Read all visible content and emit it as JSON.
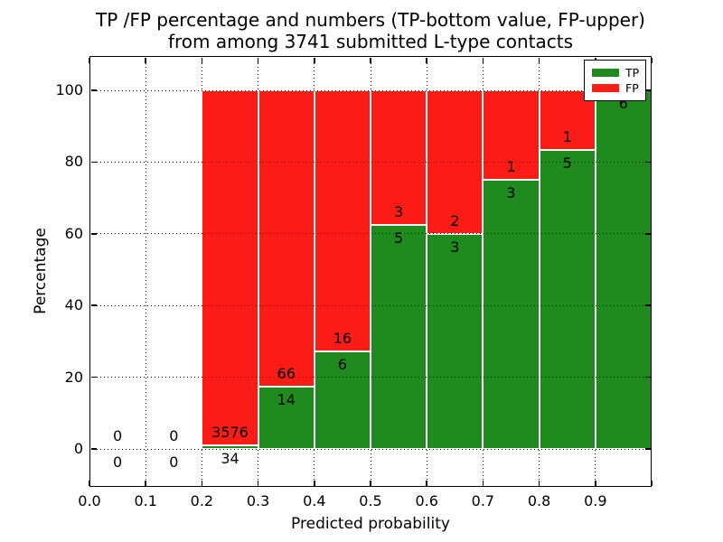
{
  "title": {
    "line1": "TP /FP percentage and numbers (TP-bottom value, FP-upper)",
    "line2": "from among 3741 submitted L-type contacts"
  },
  "colors": {
    "tp_green": "#1f8b1f",
    "fp_red": "#fb1d15",
    "grid": "#000000",
    "background": "#ffffff",
    "bar_edge": "#ffffff"
  },
  "chart_data": {
    "type": "bar",
    "stacked": true,
    "title": "TP /FP percentage and numbers (TP-bottom value, FP-upper) from among 3741 submitted L-type contacts",
    "xlabel": "Predicted probability",
    "ylabel": "Percentage",
    "total_contacts": 3741,
    "xlim": [
      0.0,
      1.0
    ],
    "ylim": [
      -10.7,
      109.8
    ],
    "x_ticks": [
      "0.0",
      "0.1",
      "0.2",
      "0.3",
      "0.4",
      "0.5",
      "0.6",
      "0.7",
      "0.8",
      "0.9"
    ],
    "y_ticks": [
      "0",
      "20",
      "40",
      "60",
      "80",
      "100"
    ],
    "grid": "dotted",
    "legend": {
      "position": "upper right",
      "entries": [
        {
          "label": "TP",
          "color": "#1f8b1f"
        },
        {
          "label": "FP",
          "color": "#fb1d15"
        }
      ]
    },
    "bins": [
      {
        "range": [
          0.0,
          0.1
        ],
        "tp": 0,
        "fp": 0,
        "tp_percent": 0
      },
      {
        "range": [
          0.1,
          0.2
        ],
        "tp": 0,
        "fp": 0,
        "tp_percent": 0
      },
      {
        "range": [
          0.2,
          0.3
        ],
        "tp": 34,
        "fp": 3576,
        "tp_percent": 0.94
      },
      {
        "range": [
          0.3,
          0.4
        ],
        "tp": 14,
        "fp": 66,
        "tp_percent": 17.5
      },
      {
        "range": [
          0.4,
          0.5
        ],
        "tp": 6,
        "fp": 16,
        "tp_percent": 27.27
      },
      {
        "range": [
          0.5,
          0.6
        ],
        "tp": 5,
        "fp": 3,
        "tp_percent": 62.5
      },
      {
        "range": [
          0.6,
          0.7
        ],
        "tp": 3,
        "fp": 2,
        "tp_percent": 60.0
      },
      {
        "range": [
          0.7,
          0.8
        ],
        "tp": 3,
        "fp": 1,
        "tp_percent": 75.0
      },
      {
        "range": [
          0.8,
          0.9
        ],
        "tp": 5,
        "fp": 1,
        "tp_percent": 83.33
      },
      {
        "range": [
          0.9,
          1.0
        ],
        "tp": 6,
        "fp": 0,
        "tp_percent": 100.0
      }
    ]
  }
}
